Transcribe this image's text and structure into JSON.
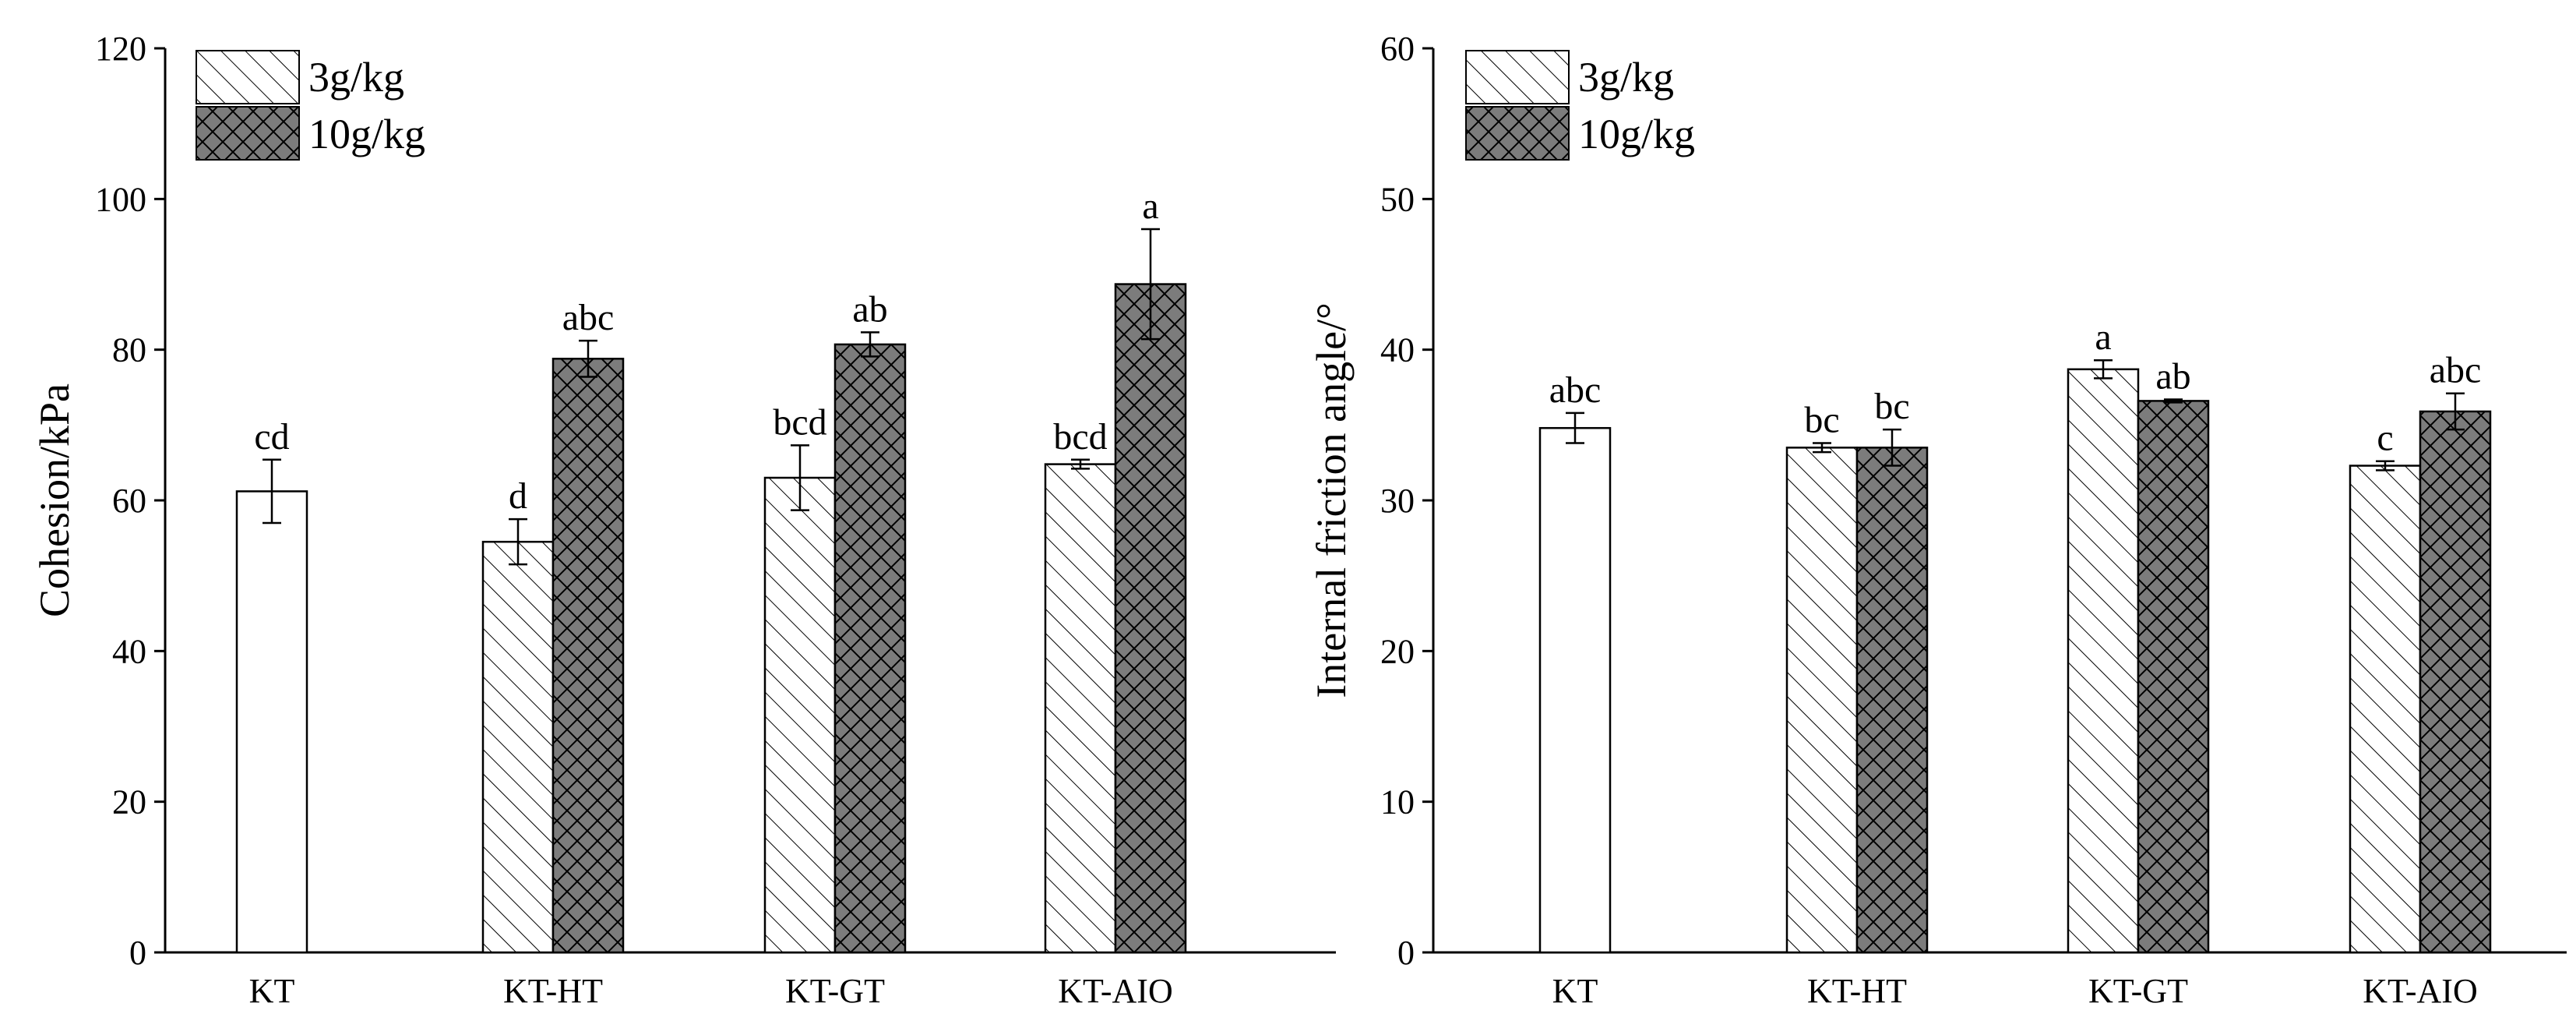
{
  "chart_data": [
    {
      "type": "bar",
      "title": "",
      "xlabel": "",
      "ylabel": "Cohesion/kPa",
      "ylim": [
        0,
        120
      ],
      "yticks": [
        "0",
        "20",
        "40",
        "60",
        "80",
        "100",
        "120"
      ],
      "categories": [
        "KT",
        "KT-HT",
        "KT-GT",
        "KT-AIO"
      ],
      "legend": {
        "position": "top-left",
        "entries": [
          "3g/kg",
          "10g/kg"
        ]
      },
      "series": [
        {
          "name": "3g/kg",
          "values": [
            61.2,
            54.5,
            63,
            64.8
          ],
          "errors": [
            4.2,
            3,
            4.3,
            0.6
          ],
          "letters": [
            "cd",
            "d",
            "bcd",
            "bcd"
          ]
        },
        {
          "name": "10g/kg",
          "values": [
            null,
            78.8,
            80.7,
            88.7
          ],
          "errors": [
            null,
            2.4,
            1.6,
            7.3
          ],
          "letters": [
            null,
            "abc",
            "ab",
            "a"
          ]
        }
      ]
    },
    {
      "type": "bar",
      "title": "",
      "xlabel": "",
      "ylabel": "Internal friction angle/°",
      "ylim": [
        0,
        60
      ],
      "yticks": [
        "0",
        "10",
        "20",
        "30",
        "40",
        "50",
        "60"
      ],
      "categories": [
        "KT",
        "KT-HT",
        "KT-GT",
        "KT-AIO"
      ],
      "legend": {
        "position": "top-left",
        "entries": [
          "3g/kg",
          "10g/kg"
        ]
      },
      "series": [
        {
          "name": "3g/kg",
          "values": [
            34.8,
            33.5,
            38.7,
            32.3
          ],
          "errors": [
            1,
            0.3,
            0.6,
            0.3
          ],
          "letters": [
            "abc",
            "bc",
            "a",
            "c"
          ]
        },
        {
          "name": "10g/kg",
          "values": [
            null,
            33.5,
            36.6,
            35.9
          ],
          "errors": [
            null,
            1.2,
            0.1,
            1.2
          ],
          "letters": [
            null,
            "bc",
            "ab",
            "abc"
          ]
        }
      ]
    }
  ]
}
